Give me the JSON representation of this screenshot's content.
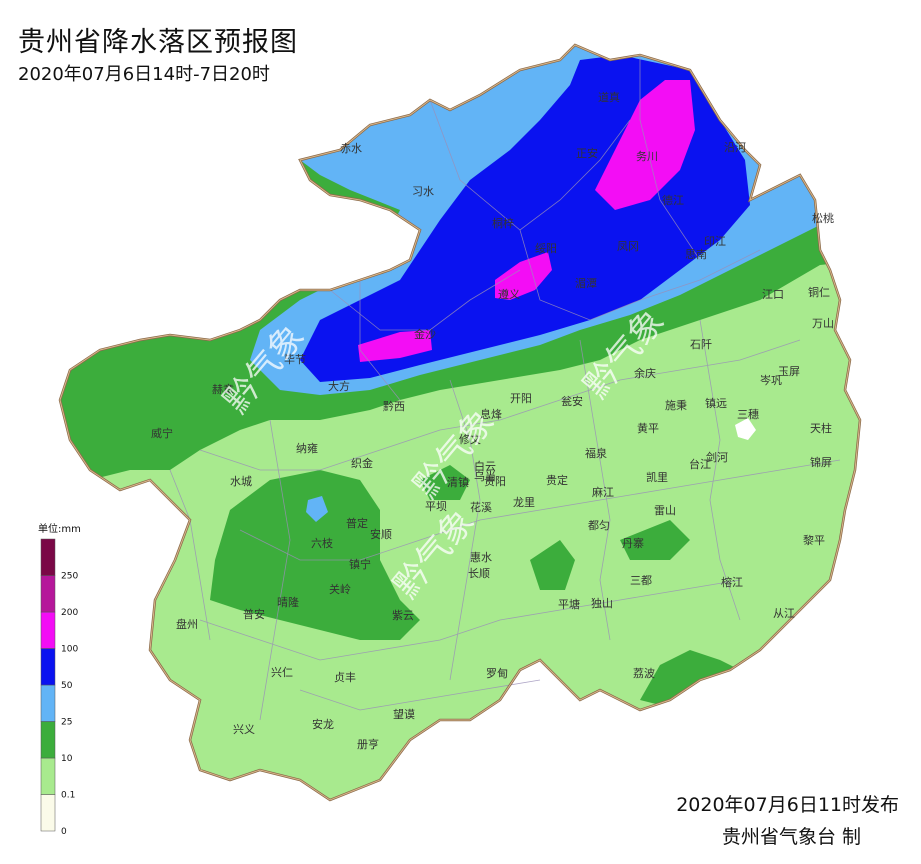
{
  "header": {
    "title": "贵州省降水落区预报图",
    "subtitle": "2020年07月6日14时-7日20时"
  },
  "footer": {
    "issued": "2020年07月6日11时发布",
    "maker": "贵州省气象台 制"
  },
  "legend": {
    "title": "单位:mm",
    "levels": [
      {
        "label": "0",
        "color": "#fbfbe9"
      },
      {
        "label": "0.1",
        "color": "#a8ea8e"
      },
      {
        "label": "10",
        "color": "#3cad3c"
      },
      {
        "label": "25",
        "color": "#62b4f6"
      },
      {
        "label": "50",
        "color": "#0a12f0"
      },
      {
        "label": "100",
        "color": "#f30df5"
      },
      {
        "label": "200",
        "color": "#b5179a"
      },
      {
        "label": "250",
        "color": "#7a0846"
      }
    ]
  },
  "watermark": "黔气象",
  "cities": [
    {
      "name": "赤水"
    },
    {
      "name": "习水"
    },
    {
      "name": "桐梓"
    },
    {
      "name": "正安"
    },
    {
      "name": "道真"
    },
    {
      "name": "务川"
    },
    {
      "name": "沿河"
    },
    {
      "name": "德江"
    },
    {
      "name": "松桃"
    },
    {
      "name": "印江"
    },
    {
      "name": "思南"
    },
    {
      "name": "凤冈"
    },
    {
      "name": "湄潭"
    },
    {
      "name": "绥阳"
    },
    {
      "name": "遵义"
    },
    {
      "name": "金沙"
    },
    {
      "name": "毕节"
    },
    {
      "name": "大方"
    },
    {
      "name": "赫章"
    },
    {
      "name": "黔西"
    },
    {
      "name": "威宁"
    },
    {
      "name": "纳雍"
    },
    {
      "name": "织金"
    },
    {
      "name": "修文"
    },
    {
      "name": "息烽"
    },
    {
      "name": "开阳"
    },
    {
      "name": "瓮安"
    },
    {
      "name": "余庆"
    },
    {
      "name": "石阡"
    },
    {
      "name": "江口"
    },
    {
      "name": "铜仁"
    },
    {
      "name": "万山"
    },
    {
      "name": "玉屏"
    },
    {
      "name": "岑巩"
    },
    {
      "name": "镇远"
    },
    {
      "name": "施秉"
    },
    {
      "name": "黄平"
    },
    {
      "name": "三穗"
    },
    {
      "name": "天柱"
    },
    {
      "name": "锦屏"
    },
    {
      "name": "剑河"
    },
    {
      "name": "台江"
    },
    {
      "name": "凯里"
    },
    {
      "name": "福泉"
    },
    {
      "name": "贵定"
    },
    {
      "name": "麻江"
    },
    {
      "name": "龙里"
    },
    {
      "name": "贵阳"
    },
    {
      "name": "白云"
    },
    {
      "name": "乌当"
    },
    {
      "name": "清镇"
    },
    {
      "name": "平坝"
    },
    {
      "name": "花溪"
    },
    {
      "name": "水城"
    },
    {
      "name": "六枝"
    },
    {
      "name": "普定"
    },
    {
      "name": "安顺"
    },
    {
      "name": "镇宁"
    },
    {
      "name": "关岭"
    },
    {
      "name": "紫云"
    },
    {
      "name": "长顺"
    },
    {
      "name": "惠水"
    },
    {
      "name": "都匀"
    },
    {
      "name": "雷山"
    },
    {
      "name": "丹寨"
    },
    {
      "name": "黎平"
    },
    {
      "name": "三都"
    },
    {
      "name": "榕江"
    },
    {
      "name": "从江"
    },
    {
      "name": "荔波"
    },
    {
      "name": "独山"
    },
    {
      "name": "平塘"
    },
    {
      "name": "罗甸"
    },
    {
      "name": "望谟"
    },
    {
      "name": "册亨"
    },
    {
      "name": "安龙"
    },
    {
      "name": "兴义"
    },
    {
      "name": "兴仁"
    },
    {
      "name": "贞丰"
    },
    {
      "name": "晴隆"
    },
    {
      "name": "普安"
    },
    {
      "name": "盘州"
    }
  ]
}
